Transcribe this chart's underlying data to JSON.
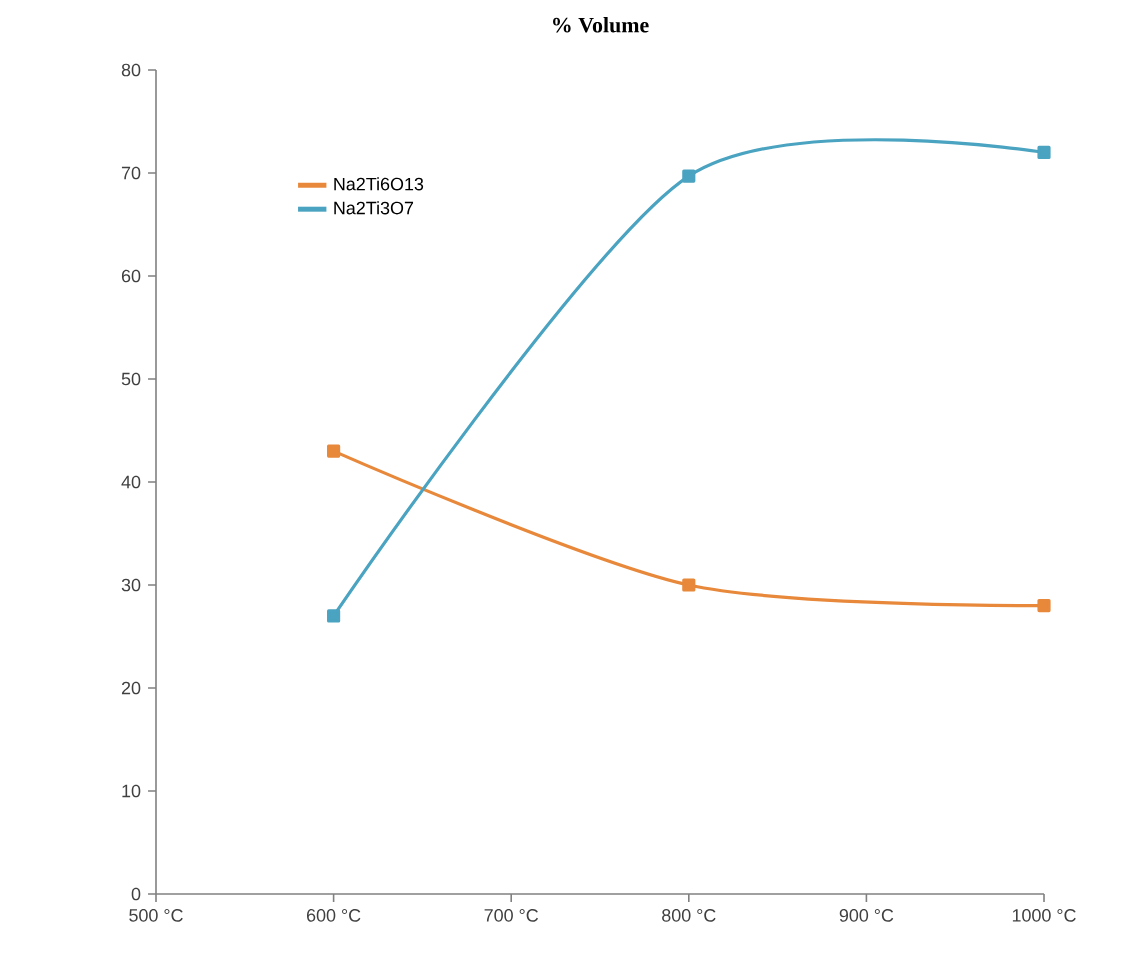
{
  "chart_data": {
    "type": "line",
    "title": "% Volume",
    "x": [
      600,
      800,
      1000
    ],
    "series": [
      {
        "name": "Na2Ti6O13",
        "color": "#e8883a",
        "values": [
          43,
          30,
          28
        ]
      },
      {
        "name": "Na2Ti3O7",
        "color": "#4aa3c0",
        "values": [
          27,
          69.7,
          72
        ]
      }
    ],
    "xlim": [
      500,
      1000
    ],
    "xticks": [
      {
        "value": 500,
        "label": "500 °C"
      },
      {
        "value": 600,
        "label": "600 °C"
      },
      {
        "value": 700,
        "label": "700 °C"
      },
      {
        "value": 800,
        "label": "800 °C"
      },
      {
        "value": 900,
        "label": "900 °C"
      },
      {
        "value": 1000,
        "label": "1000 °C"
      }
    ],
    "ylim": [
      0,
      80
    ],
    "yticks": [
      0,
      10,
      20,
      30,
      40,
      50,
      60,
      70,
      80
    ],
    "legend": "top left",
    "marker": "square",
    "line_style": "solid",
    "grid": false
  }
}
